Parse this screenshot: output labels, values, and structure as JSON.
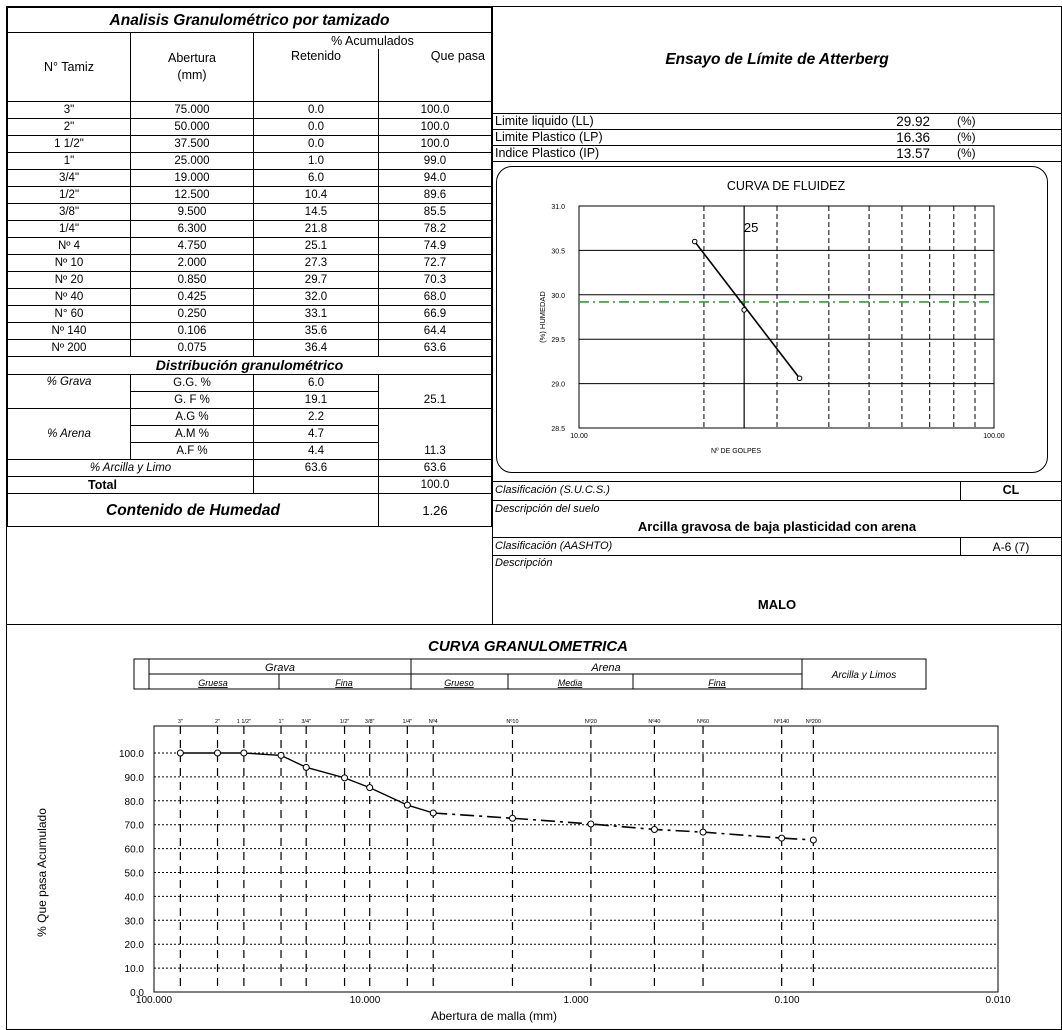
{
  "sieve_table": {
    "title": "Analisis Granulométrico por tamizado",
    "col_tamiz": "N° Tamiz",
    "col_abertura": "Abertura\n(mm)",
    "col_acumulados": "% Acumulados",
    "col_retenido": "Retenido",
    "col_quepasa": "Que pasa",
    "rows": [
      [
        "3\"",
        "75.000",
        "0.0",
        "100.0"
      ],
      [
        "2\"",
        "50.000",
        "0.0",
        "100.0"
      ],
      [
        "1 1/2\"",
        "37.500",
        "0.0",
        "100.0"
      ],
      [
        "1\"",
        "25.000",
        "1.0",
        "99.0"
      ],
      [
        "3/4\"",
        "19.000",
        "6.0",
        "94.0"
      ],
      [
        "1/2\"",
        "12.500",
        "10.4",
        "89.6"
      ],
      [
        "3/8\"",
        "9.500",
        "14.5",
        "85.5"
      ],
      [
        "1/4\"",
        "6.300",
        "21.8",
        "78.2"
      ],
      [
        "Nº 4",
        "4.750",
        "25.1",
        "74.9"
      ],
      [
        "Nº 10",
        "2.000",
        "27.3",
        "72.7"
      ],
      [
        "Nº 20",
        "0.850",
        "29.7",
        "70.3"
      ],
      [
        "Nº 40",
        "0.425",
        "32.0",
        "68.0"
      ],
      [
        "N° 60",
        "0.250",
        "33.1",
        "66.9"
      ],
      [
        "Nº 140",
        "0.106",
        "35.6",
        "64.4"
      ],
      [
        "Nº 200",
        "0.075",
        "36.4",
        "63.6"
      ]
    ]
  },
  "distribution": {
    "title": "Distribución granulométrico",
    "grava_label": "% Grava",
    "gg_label": "G.G. %",
    "gg_value": "6.0",
    "gf_label": "G. F %",
    "gf_value": "19.1",
    "grava_total": "25.1",
    "arena_label": "% Arena",
    "ag_label": "A.G %",
    "ag_value": "2.2",
    "am_label": "A.M %",
    "am_value": "4.7",
    "af_label": "A.F %",
    "af_value": "4.4",
    "arena_total": "11.3",
    "arcilla_label": "% Arcilla  y Limo",
    "arcilla_value": "63.6",
    "arcilla_total": "63.6",
    "total_label": "Total",
    "total_value": "100.0",
    "humedad_label": "Contenido de Humedad",
    "humedad_value": "1.26"
  },
  "atterberg": {
    "title": "Ensayo de Límite de Atterberg",
    "rows": [
      {
        "label": "Limite liquido (LL)",
        "value": "29.92",
        "unit": "(%)"
      },
      {
        "label": "Limite Plastico (LP)",
        "value": "16.36",
        "unit": "(%)"
      },
      {
        "label": "Indice Plastico (IP)",
        "value": "13.57",
        "unit": "(%)"
      }
    ]
  },
  "classification": {
    "sucs_label": "Clasificación (S.U.C.S.)",
    "sucs_value": "CL",
    "desc_label": "Descripción del suelo",
    "desc_value": "Arcilla gravosa de baja plasticidad con arena",
    "aashto_label": "Clasificación (AASHTO)",
    "aashto_value": "A-6 (7)",
    "desc2_label": "Descripción",
    "desc2_value": "MALO"
  },
  "colors": {
    "reference_line": "#3a9a3a",
    "line": "#000000"
  },
  "chart_data": [
    {
      "type": "line",
      "title": "CURVA DE FLUIDEZ",
      "xlabel": "Nº DE GOLPES",
      "ylabel": "(%) HUMEDAD",
      "xscale": "log",
      "xlim": [
        10,
        100
      ],
      "ylim": [
        28.5,
        31.0
      ],
      "xticks": [
        "10.00",
        "100.00"
      ],
      "yticks": [
        "31.0",
        "30.5",
        "30.0",
        "29.5",
        "29.0",
        "28.5"
      ],
      "annotation": "25",
      "reference_x": 25,
      "reference_y": 29.92,
      "points": [
        [
          19,
          30.6
        ],
        [
          25,
          29.83
        ],
        [
          34,
          29.06
        ]
      ]
    },
    {
      "type": "line",
      "title": "CURVA GRANULOMETRICA",
      "xlabel": "Abertura de malla (mm)",
      "ylabel": "% Que pasa Acumulado",
      "xscale": "log",
      "xlim": [
        100,
        0.01
      ],
      "ylim": [
        0,
        100
      ],
      "xticks": [
        "100.000",
        "10.000",
        "1.000",
        "0.100",
        "0.010"
      ],
      "yticks": [
        "100.0",
        "90.0",
        "80.0",
        "70.0",
        "60.0",
        "50.0",
        "40.0",
        "30.0",
        "20.0",
        "10.0",
        "0.0"
      ],
      "sieve_labels": [
        "3\"",
        "2\"",
        "1 1/2\"",
        "1\"",
        "3/4\"",
        "1/2\"",
        "3/8\"",
        "1/4\"",
        "Nº4",
        "Nº10",
        "Nº20",
        "Nº40",
        "Nº60",
        "Nº140",
        "Nº200"
      ],
      "header": {
        "grava": "Grava",
        "gruesa": "Gruesa",
        "fina_g": "Fina",
        "arena": "Arena",
        "grueso": "Grueso",
        "media": "Media",
        "fina_a": "Fina",
        "arcilla": "Arcilla y Limos"
      },
      "x": [
        75,
        50,
        37.5,
        25,
        19,
        12.5,
        9.5,
        6.3,
        4.75,
        2,
        0.85,
        0.425,
        0.25,
        0.106,
        0.075
      ],
      "y": [
        100,
        100,
        100,
        99,
        94,
        89.6,
        85.5,
        78.2,
        74.9,
        72.7,
        70.3,
        68,
        66.9,
        64.4,
        63.6
      ]
    }
  ]
}
